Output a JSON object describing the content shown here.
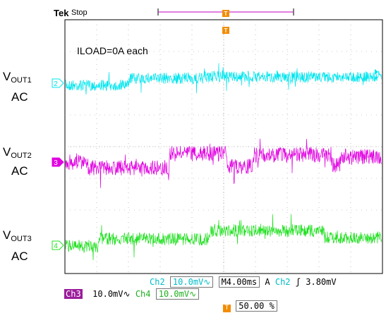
{
  "header": {
    "brand": "Tek",
    "state": "Stop"
  },
  "annotation": "ILOAD=0A each",
  "channel_labels": [
    {
      "main": "V",
      "sub": "OUT1",
      "coupling": "AC",
      "marker": "2",
      "color": "#00e5ee"
    },
    {
      "main": "V",
      "sub": "OUT2",
      "coupling": "AC",
      "marker": "3",
      "color": "#e000e0"
    },
    {
      "main": "V",
      "sub": "OUT3",
      "coupling": "AC",
      "marker": "4",
      "color": "#22e022"
    }
  ],
  "trigger_marker": "T",
  "readouts": {
    "ch2": {
      "label": "Ch2",
      "scale": "10.0mV",
      "coupling_symbol": "∿"
    },
    "ch3": {
      "label": "Ch3",
      "scale": "10.0mV",
      "coupling_symbol": "∿"
    },
    "ch4": {
      "label": "Ch4",
      "scale": "10.0mV",
      "coupling_symbol": "∿"
    },
    "timebase": "M4.00ms",
    "trigger_mode": "A",
    "trigger_source": "Ch2",
    "trigger_slope": "ʃ",
    "trigger_level": "3.80mV",
    "trigger_position": "50.00 %"
  },
  "colors": {
    "ch2": "#00e5ee",
    "ch3": "#e000e0",
    "ch4": "#22e022",
    "trigger": "#f28c00"
  }
}
